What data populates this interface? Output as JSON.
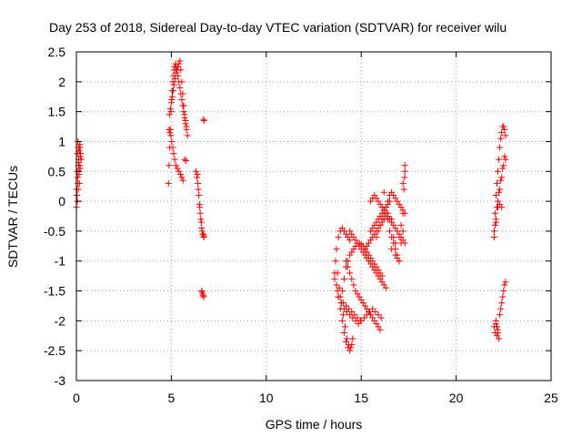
{
  "chart_data": {
    "type": "scatter",
    "title": "Day 253 of 2018, Sidereal Day-to-day VTEC variation (SDTVAR) for receiver wilu",
    "xlabel": "GPS time / hours",
    "ylabel": "SDTVAR / TECUs",
    "xlim": [
      0,
      25
    ],
    "ylim": [
      -3,
      2.5
    ],
    "xticks": [
      0,
      5,
      10,
      15,
      20,
      25
    ],
    "yticks": [
      -3,
      -2.5,
      -2,
      -1.5,
      -1,
      -0.5,
      0,
      0.5,
      1,
      1.5,
      2,
      2.5
    ],
    "xtick_labels": [
      "0",
      "5",
      "10",
      "15",
      "20",
      "25"
    ],
    "ytick_labels": [
      "-3",
      "-2.5",
      "-2",
      "-1.5",
      "-1",
      "-0.5",
      "0",
      "0.5",
      "1",
      "1.5",
      "2",
      "2.5"
    ],
    "grid": true,
    "marker": "+",
    "color": "#ff0000",
    "series": [
      {
        "name": "SDTVAR",
        "x": [
          0.0,
          0.02,
          0.04,
          0.06,
          0.08,
          0.1,
          0.12,
          0.14,
          0.16,
          0.18,
          0.2,
          0.22,
          0.24,
          0.05,
          0.08,
          0.12,
          0.15,
          0.18,
          0.21,
          0.03,
          0.07,
          0.11,
          0.16,
          0.2,
          0.25,
          0.1,
          0.14,
          0.19,
          4.85,
          4.88,
          4.92,
          4.95,
          4.98,
          5.02,
          5.05,
          5.08,
          5.12,
          5.15,
          5.18,
          5.22,
          5.25,
          5.3,
          5.35,
          5.4,
          5.45,
          5.5,
          5.55,
          5.6,
          5.65,
          5.7,
          5.75,
          5.8,
          4.9,
          4.95,
          5.0,
          5.05,
          5.1,
          5.15,
          5.2,
          5.25,
          5.3,
          5.35,
          5.4,
          5.45,
          5.5,
          5.55,
          5.6,
          5.65,
          5.7,
          5.75,
          5.8,
          5.85,
          4.88,
          4.92,
          4.98,
          5.02,
          5.08,
          5.12,
          5.18,
          5.25,
          5.32,
          5.4,
          5.48,
          5.55,
          5.62,
          5.7,
          5.78,
          6.3,
          6.35,
          6.4,
          6.45,
          6.5,
          6.55,
          6.6,
          6.65,
          6.7,
          6.38,
          6.42,
          6.48,
          6.52,
          6.58,
          6.62,
          6.68,
          6.72,
          6.6,
          6.65,
          6.7,
          6.62,
          6.68,
          6.7,
          6.72,
          13.6,
          13.7,
          13.8,
          13.9,
          14.0,
          14.1,
          14.2,
          14.3,
          14.4,
          14.5,
          13.65,
          13.75,
          13.85,
          13.95,
          14.05,
          14.15,
          14.25,
          14.35,
          14.45,
          14.55,
          13.7,
          13.8,
          13.9,
          14.0,
          14.1,
          14.2,
          14.3,
          14.4,
          13.6,
          13.75,
          13.9,
          14.05,
          14.2,
          14.35,
          14.5,
          14.65,
          14.8,
          14.95,
          14.0,
          14.1,
          14.2,
          14.3,
          14.4,
          14.5,
          14.6,
          14.7,
          14.8,
          14.9,
          15.0,
          15.1,
          15.2,
          15.3,
          15.4,
          15.5,
          15.6,
          15.7,
          15.8,
          15.9,
          16.0,
          16.1,
          13.8,
          13.95,
          14.1,
          14.25,
          14.4,
          14.55,
          14.7,
          14.85,
          15.0,
          15.15,
          15.3,
          15.45,
          15.6,
          15.75,
          15.9,
          16.05,
          14.2,
          14.3,
          14.4,
          14.5,
          14.6,
          14.7,
          14.8,
          14.9,
          15.0,
          15.1,
          15.2,
          15.3,
          15.4,
          15.5,
          15.6,
          15.7,
          15.8,
          15.9,
          16.0,
          14.4,
          14.5,
          14.6,
          14.7,
          14.8,
          14.9,
          15.0,
          15.1,
          15.2,
          15.3,
          15.4,
          15.5,
          15.6,
          15.7,
          15.8,
          15.9,
          16.0,
          16.1,
          16.2,
          16.3,
          15.2,
          15.3,
          15.4,
          15.5,
          15.6,
          15.7,
          15.8,
          15.9,
          16.0,
          16.1,
          16.2,
          16.3,
          16.4,
          16.5,
          16.6,
          16.7,
          16.8,
          16.9,
          17.0,
          17.1,
          17.2,
          15.5,
          15.6,
          15.7,
          15.8,
          15.9,
          16.0,
          16.1,
          16.2,
          16.3,
          16.4,
          16.5,
          16.6,
          16.7,
          16.8,
          16.9,
          17.0,
          17.1,
          17.2,
          17.3,
          15.8,
          15.9,
          16.0,
          16.1,
          16.2,
          16.3,
          16.4,
          16.5,
          16.6,
          16.7,
          16.8,
          16.9,
          17.0,
          17.1,
          17.2,
          17.3,
          15.5,
          15.6,
          15.7,
          15.8,
          15.9,
          16.0,
          16.1,
          16.2,
          16.3,
          16.4,
          16.5,
          16.6,
          16.7,
          16.8,
          16.9,
          17.0,
          17.1,
          17.2,
          17.3,
          16.2,
          16.4,
          16.6,
          16.8,
          17.0,
          17.2,
          17.25,
          17.28,
          17.3,
          22.0,
          22.05,
          22.1,
          22.15,
          22.2,
          22.25,
          22.3,
          22.35,
          22.4,
          22.45,
          22.5,
          22.55,
          22.6,
          22.1,
          22.2,
          22.3,
          22.4,
          22.5,
          22.6,
          22.05,
          22.15,
          22.25,
          22.35,
          22.45,
          22.55,
          22.0,
          22.1,
          22.2,
          22.3,
          22.4,
          22.1,
          22.15,
          22.2,
          22.25,
          22.3,
          22.35,
          22.4,
          22.45,
          22.5,
          22.55,
          22.6,
          22.0,
          22.05,
          22.1,
          22.15,
          22.2
        ],
        "y": [
          -0.1,
          0.2,
          0.5,
          0.8,
          1.0,
          0.9,
          0.7,
          0.5,
          0.3,
          0.6,
          0.9,
          0.8,
          0.7,
          0.0,
          0.3,
          0.6,
          0.85,
          0.95,
          0.75,
          0.1,
          0.4,
          0.65,
          0.9,
          0.55,
          0.7,
          0.2,
          0.45,
          0.8,
          0.3,
          0.6,
          0.9,
          1.2,
          1.5,
          1.7,
          1.85,
          2.0,
          2.1,
          2.2,
          2.25,
          2.3,
          2.25,
          2.2,
          2.1,
          2.0,
          1.9,
          1.8,
          1.7,
          1.6,
          1.5,
          1.4,
          1.3,
          1.2,
          1.45,
          1.55,
          1.65,
          1.75,
          1.85,
          1.95,
          2.05,
          2.15,
          2.2,
          2.25,
          2.3,
          2.35,
          2.2,
          2.0,
          1.8,
          1.6,
          1.45,
          1.35,
          1.25,
          1.1,
          1.2,
          1.15,
          1.1,
          1.0,
          0.9,
          0.8,
          0.7,
          0.6,
          0.55,
          0.5,
          0.45,
          0.4,
          0.35,
          0.7,
          0.68,
          0.5,
          0.4,
          0.3,
          0.1,
          -0.1,
          -0.3,
          -0.45,
          -0.55,
          -0.6,
          0.45,
          0.2,
          -0.05,
          -0.2,
          -0.35,
          -0.5,
          -0.55,
          -0.58,
          -1.5,
          -1.55,
          -1.6,
          -1.52,
          -1.58,
          1.37,
          1.35,
          -1.2,
          -1.4,
          -1.6,
          -1.8,
          -2.0,
          -2.2,
          -2.35,
          -2.45,
          -2.5,
          -2.4,
          -1.0,
          -1.2,
          -1.45,
          -1.7,
          -1.9,
          -2.1,
          -2.3,
          -2.4,
          -2.45,
          -2.3,
          -0.8,
          -0.6,
          -0.5,
          -0.45,
          -0.5,
          -0.55,
          -0.6,
          -0.65,
          -1.3,
          -1.5,
          -1.6,
          -1.7,
          -1.75,
          -1.8,
          -1.85,
          -1.9,
          -1.95,
          -2.0,
          -1.5,
          -1.3,
          -1.1,
          -1.0,
          -0.9,
          -0.85,
          -0.8,
          -0.75,
          -0.7,
          -0.7,
          -0.72,
          -0.75,
          -0.8,
          -0.85,
          -0.9,
          -0.95,
          -1.0,
          -1.05,
          -1.1,
          -1.15,
          -1.2,
          -1.25,
          -1.6,
          -1.7,
          -1.8,
          -1.85,
          -1.9,
          -1.95,
          -2.0,
          -2.05,
          -2.0,
          -1.95,
          -1.9,
          -1.85,
          -1.8,
          -1.85,
          -1.9,
          -1.95,
          -1.0,
          -1.1,
          -1.2,
          -1.3,
          -1.4,
          -1.5,
          -1.55,
          -1.6,
          -1.65,
          -1.7,
          -1.75,
          -1.8,
          -1.85,
          -1.9,
          -1.95,
          -2.0,
          -2.05,
          -2.1,
          -2.15,
          -0.5,
          -0.55,
          -0.6,
          -0.65,
          -0.7,
          -0.75,
          -0.8,
          -0.85,
          -0.9,
          -0.95,
          -1.0,
          -1.05,
          -1.1,
          -1.15,
          -1.2,
          -1.25,
          -1.3,
          -1.35,
          -1.4,
          -1.45,
          -0.8,
          -0.75,
          -0.7,
          -0.65,
          -0.6,
          -0.55,
          -0.5,
          -0.45,
          -0.4,
          -0.35,
          -0.3,
          -0.25,
          -0.2,
          -0.5,
          -0.6,
          -0.7,
          -0.8,
          -0.9,
          -1.0,
          -0.7,
          -0.5,
          0.0,
          0.05,
          0.1,
          0.05,
          0.0,
          -0.05,
          -0.1,
          -0.15,
          -0.2,
          -0.25,
          -0.3,
          -0.35,
          -0.4,
          -0.45,
          -0.5,
          -0.55,
          -0.6,
          -0.65,
          -0.7,
          -0.6,
          -0.5,
          -0.4,
          -0.3,
          -0.2,
          -0.1,
          0.0,
          0.1,
          0.15,
          0.1,
          0.05,
          0.0,
          -0.05,
          -0.1,
          -0.15,
          -0.2,
          -0.5,
          -0.45,
          -0.4,
          -0.35,
          -0.3,
          -0.25,
          -0.2,
          -0.15,
          -0.1,
          -0.05,
          0.0,
          -0.3,
          -0.6,
          -0.9,
          -0.95,
          -1.0,
          -0.4,
          0.3,
          0.6,
          0.15,
          -0.3,
          -0.8,
          -0.7,
          -0.6,
          -0.2,
          0.2,
          0.4,
          0.5,
          -0.5,
          -0.2,
          0.1,
          0.3,
          0.5,
          0.7,
          0.9,
          1.05,
          1.15,
          1.25,
          1.25,
          1.2,
          1.1,
          -0.3,
          0.0,
          0.2,
          0.4,
          0.6,
          0.7,
          -0.4,
          -0.1,
          0.15,
          0.35,
          0.55,
          0.75,
          -0.6,
          -0.35,
          -0.1,
          -0.05,
          -0.1,
          -2.0,
          -2.1,
          -2.2,
          -2.3,
          -1.9,
          -1.8,
          -1.7,
          -1.6,
          -1.5,
          -1.4,
          -1.35,
          -2.1,
          -2.2,
          -2.05,
          -2.25,
          -2.15
        ]
      }
    ]
  }
}
